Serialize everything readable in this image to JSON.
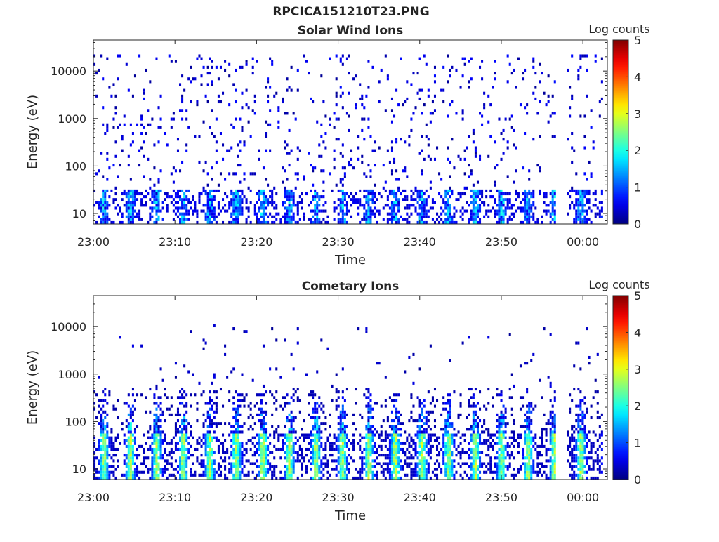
{
  "figure": {
    "suptitle": "RPCICA151210T23.PNG"
  },
  "chart_data": [
    {
      "type": "heatmap",
      "title": "Solar Wind Ions",
      "xlabel": "Time",
      "ylabel": "Energy (eV)",
      "y_scale": "log",
      "ylim": [
        6,
        45000
      ],
      "x_tick_labels": [
        "23:00",
        "23:10",
        "23:20",
        "23:30",
        "23:40",
        "23:50",
        "00:00"
      ],
      "x_ticks_minutes": [
        0,
        10,
        20,
        30,
        40,
        50,
        60
      ],
      "xlim_minutes": [
        0,
        63
      ],
      "y_tick_labels": [
        "10",
        "100",
        "1000",
        "10000"
      ],
      "y_ticks": [
        10,
        100,
        1000,
        10000
      ],
      "data_gap_minutes": [
        56.5,
        58
      ],
      "colorbar": {
        "label": "Log counts",
        "range": [
          0,
          5
        ],
        "ticks": [
          "0",
          "1",
          "2",
          "3",
          "4",
          "5"
        ]
      },
      "structure": "scattered low counts (~0-1 log) across 30 eV-20 keV; periodic bursts about every 3 minutes below 40 eV reaching ~1.5-2 log"
    },
    {
      "type": "heatmap",
      "title": "Cometary Ions",
      "xlabel": "Time",
      "ylabel": "Energy (eV)",
      "y_scale": "log",
      "ylim": [
        6,
        45000
      ],
      "x_tick_labels": [
        "23:00",
        "23:10",
        "23:20",
        "23:30",
        "23:40",
        "23:50",
        "00:00"
      ],
      "x_ticks_minutes": [
        0,
        10,
        20,
        30,
        40,
        50,
        60
      ],
      "xlim_minutes": [
        0,
        63
      ],
      "y_tick_labels": [
        "10",
        "100",
        "1000",
        "10000"
      ],
      "y_ticks": [
        10,
        100,
        1000,
        10000
      ],
      "data_gap_minutes": [
        56.5,
        58
      ],
      "colorbar": {
        "label": "Log counts",
        "range": [
          0,
          5
        ],
        "ticks": [
          "0",
          "1",
          "2",
          "3",
          "4",
          "5"
        ]
      },
      "structure": "periodic bursts about every 3 minutes from ~8 eV to ~400 eV peaking ~2.5-3 log near 15-30 eV; sparse counts 1-10 keV"
    }
  ]
}
